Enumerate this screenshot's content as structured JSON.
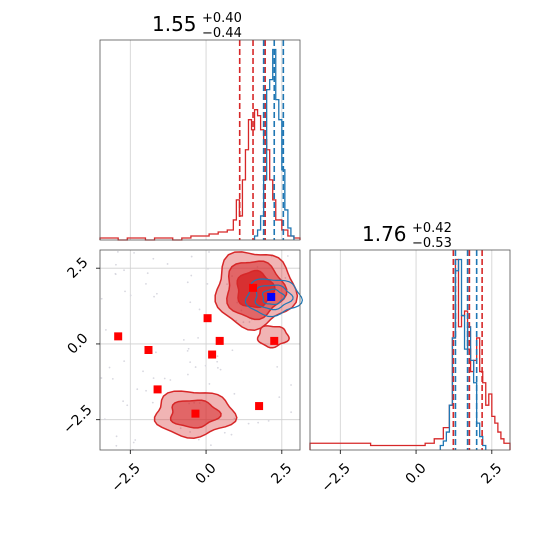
{
  "chart_data": [
    {
      "panel": "marginal-1",
      "type": "histogram",
      "title": {
        "value": "1.55",
        "upper": "+0.40",
        "lower": "−0.44"
      },
      "xlim": [
        -3.5,
        3.1
      ],
      "grid": true,
      "series": [
        {
          "name": "",
          "color": "#d62728",
          "bins_x": [
            -3.5,
            -3.2,
            -2.9,
            -2.6,
            -2.3,
            -2.0,
            -1.7,
            -1.4,
            -1.1,
            -0.8,
            -0.5,
            -0.2,
            0.1,
            0.4,
            0.7,
            0.9,
            1.0,
            1.1,
            1.2,
            1.3,
            1.4,
            1.5,
            1.6,
            1.7,
            1.8,
            1.9,
            2.0,
            2.1,
            2.2,
            2.3,
            2.5,
            2.7,
            2.9,
            3.1
          ],
          "counts": [
            0.01,
            0.01,
            0.0,
            0.01,
            0.01,
            0.0,
            0.01,
            0.01,
            0.0,
            0.01,
            0.02,
            0.02,
            0.03,
            0.04,
            0.05,
            0.1,
            0.2,
            0.12,
            0.3,
            0.45,
            0.6,
            0.55,
            0.65,
            0.62,
            0.55,
            0.5,
            0.45,
            0.3,
            0.2,
            0.1,
            0.05,
            0.02,
            0.01
          ]
        },
        {
          "name": "",
          "color": "#1f77b4",
          "bins_x": [
            1.6,
            1.7,
            1.8,
            1.9,
            2.0,
            2.1,
            2.2,
            2.3,
            2.4,
            2.5,
            2.6,
            2.7,
            2.8,
            2.9
          ],
          "counts": [
            0.02,
            0.05,
            0.12,
            0.3,
            0.75,
            0.8,
            0.95,
            0.7,
            0.6,
            0.35,
            0.15,
            0.06,
            0.02
          ]
        }
      ],
      "quantile_lines": [
        {
          "x": 1.11,
          "color": "#d62728"
        },
        {
          "x": 1.55,
          "color": "#d62728"
        },
        {
          "x": 1.95,
          "color": "#d62728"
        },
        {
          "x": 1.9,
          "color": "#1f77b4"
        },
        {
          "x": 2.25,
          "color": "#1f77b4"
        },
        {
          "x": 2.55,
          "color": "#1f77b4"
        }
      ]
    },
    {
      "panel": "joint",
      "type": "scatter-contour",
      "xlim": [
        -3.5,
        3.1
      ],
      "ylim": [
        -3.5,
        3.1
      ],
      "xticks": [
        -2.5,
        0.0,
        2.5
      ],
      "yticks": [
        -2.5,
        0.0,
        2.5
      ],
      "xtick_labels": [
        "−2.5",
        "0.0",
        "2.5"
      ],
      "ytick_labels": [
        "−2.5",
        "0.0",
        "2.5"
      ],
      "grid": true,
      "red_markers": [
        {
          "x": -2.9,
          "y": 0.25
        },
        {
          "x": -1.9,
          "y": -0.2
        },
        {
          "x": -1.6,
          "y": -1.5
        },
        {
          "x": -0.35,
          "y": -2.3
        },
        {
          "x": 0.05,
          "y": 0.85
        },
        {
          "x": 0.2,
          "y": -0.35
        },
        {
          "x": 0.45,
          "y": 0.1
        },
        {
          "x": 1.55,
          "y": 1.85
        },
        {
          "x": 1.75,
          "y": -2.05
        },
        {
          "x": 2.25,
          "y": 0.1
        }
      ],
      "blue_marker": {
        "x": 2.15,
        "y": 1.55
      },
      "contours": [
        {
          "name": "upper-right-red",
          "color": "#d62728",
          "cx": 1.6,
          "cy": 1.8,
          "levels": [
            [
              1.3,
              1.25
            ],
            [
              0.95,
              0.95
            ],
            [
              0.6,
              0.6
            ]
          ]
        },
        {
          "name": "lower-red",
          "color": "#d62728",
          "cx": -0.4,
          "cy": -2.3,
          "levels": [
            [
              1.3,
              0.75
            ],
            [
              0.8,
              0.45
            ]
          ]
        },
        {
          "name": "tail-red",
          "color": "#d62728",
          "cx": 2.2,
          "cy": 0.25,
          "levels": [
            [
              0.5,
              0.35
            ]
          ]
        },
        {
          "name": "blue",
          "color": "#1f77b4",
          "cx": 2.2,
          "cy": 1.55,
          "levels": [
            [
              0.9,
              0.6
            ],
            [
              0.6,
              0.4
            ],
            [
              0.35,
              0.25
            ]
          ]
        }
      ]
    },
    {
      "panel": "marginal-2",
      "type": "histogram",
      "title": {
        "value": "1.76",
        "upper": "+0.42",
        "lower": "−0.53"
      },
      "xlim": [
        -3.5,
        3.1
      ],
      "xticks": [
        -2.5,
        0.0,
        2.5
      ],
      "xtick_labels": [
        "−2.5",
        "0.0",
        "2.5"
      ],
      "grid": true,
      "series": [
        {
          "name": "",
          "color": "#d62728",
          "bins_x": [
            -3.5,
            -3.0,
            -2.5,
            -2.0,
            -1.5,
            -1.0,
            -0.5,
            0.0,
            0.3,
            0.6,
            0.9,
            1.1,
            1.2,
            1.3,
            1.4,
            1.5,
            1.6,
            1.7,
            1.8,
            1.9,
            2.0,
            2.1,
            2.2,
            2.3,
            2.4,
            2.5,
            2.6,
            2.7,
            2.8,
            2.9,
            3.1
          ],
          "counts": [
            0.03,
            0.03,
            0.03,
            0.03,
            0.02,
            0.02,
            0.02,
            0.02,
            0.03,
            0.05,
            0.1,
            0.2,
            0.5,
            0.85,
            0.55,
            0.6,
            0.62,
            0.45,
            0.35,
            0.4,
            0.5,
            0.35,
            0.3,
            0.2,
            0.25,
            0.15,
            0.12,
            0.08,
            0.05,
            0.03
          ]
        },
        {
          "name": "",
          "color": "#1f77b4",
          "bins_x": [
            0.8,
            0.9,
            1.0,
            1.1,
            1.2,
            1.3,
            1.4,
            1.5,
            1.6,
            1.7,
            1.8,
            1.9,
            2.0,
            2.1,
            2.2,
            2.3
          ],
          "counts": [
            0.02,
            0.04,
            0.08,
            0.2,
            0.5,
            0.8,
            0.85,
            0.6,
            0.45,
            0.55,
            0.4,
            0.3,
            0.12,
            0.06,
            0.02
          ]
        }
      ],
      "quantile_lines": [
        {
          "x": 1.23,
          "color": "#d62728"
        },
        {
          "x": 1.76,
          "color": "#d62728"
        },
        {
          "x": 2.18,
          "color": "#d62728"
        },
        {
          "x": 1.3,
          "color": "#1f77b4"
        },
        {
          "x": 1.7,
          "color": "#1f77b4"
        },
        {
          "x": 2.0,
          "color": "#1f77b4"
        }
      ]
    }
  ]
}
